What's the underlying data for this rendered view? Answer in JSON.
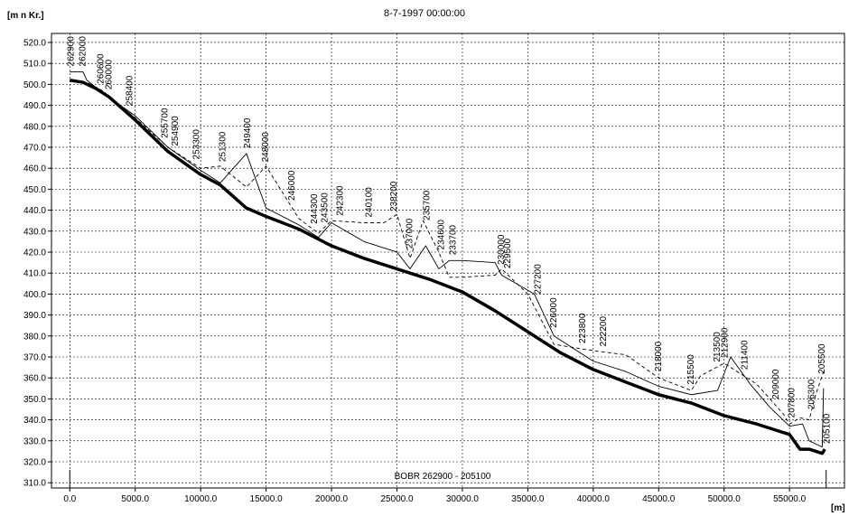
{
  "chart_data": {
    "type": "line",
    "title": "8-7-1997 00:00:00",
    "y_label": "[m n Kr.]",
    "x_label": "[m]",
    "branch_label": "BOBR  262900 - 205100",
    "xlim": [
      -1400,
      59200
    ],
    "ylim": [
      307.5,
      524.3
    ],
    "grid": true,
    "xticks": [
      {
        "value": 0,
        "label": "0.0"
      },
      {
        "value": 5000,
        "label": "5000.0"
      },
      {
        "value": 10000,
        "label": "10000.0"
      },
      {
        "value": 15000,
        "label": "15000.0"
      },
      {
        "value": 20000,
        "label": "20000.0"
      },
      {
        "value": 25000,
        "label": "25000.0"
      },
      {
        "value": 30000,
        "label": "30000.0"
      },
      {
        "value": 35000,
        "label": "35000.0"
      },
      {
        "value": 40000,
        "label": "40000.0"
      },
      {
        "value": 45000,
        "label": "45000.0"
      },
      {
        "value": 50000,
        "label": "50000.0"
      },
      {
        "value": 55000,
        "label": "55000.0"
      }
    ],
    "yticks": [
      {
        "value": 310,
        "label": "310.0"
      },
      {
        "value": 320,
        "label": "320.0"
      },
      {
        "value": 330,
        "label": "330.0"
      },
      {
        "value": 340,
        "label": "340.0"
      },
      {
        "value": 350,
        "label": "350.0"
      },
      {
        "value": 360,
        "label": "360.0"
      },
      {
        "value": 370,
        "label": "370.0"
      },
      {
        "value": 380,
        "label": "380.0"
      },
      {
        "value": 390,
        "label": "390.0"
      },
      {
        "value": 400,
        "label": "400.0"
      },
      {
        "value": 410,
        "label": "410.0"
      },
      {
        "value": 420,
        "label": "420.0"
      },
      {
        "value": 430,
        "label": "430.0"
      },
      {
        "value": 440,
        "label": "440.0"
      },
      {
        "value": 450,
        "label": "450.0"
      },
      {
        "value": 460,
        "label": "460.0"
      },
      {
        "value": 470,
        "label": "470.0"
      },
      {
        "value": 480,
        "label": "480.0"
      },
      {
        "value": 490,
        "label": "490.0"
      },
      {
        "value": 500,
        "label": "500.0"
      },
      {
        "value": 510,
        "label": "510.0"
      },
      {
        "value": 520,
        "label": "520.0"
      }
    ],
    "series": [
      {
        "color": "#000000",
        "style": "thick",
        "x": [
          0,
          1000,
          2000,
          3000,
          5000,
          7500,
          10000,
          11500,
          13500,
          15000,
          17500,
          20000,
          22500,
          25000,
          27500,
          30000,
          32500,
          35000,
          37500,
          40000,
          42500,
          45000,
          47500,
          50000,
          52500,
          55000,
          55800,
          56500,
          57500,
          57700
        ],
        "values": [
          502,
          501,
          498,
          494,
          483,
          468,
          457,
          452,
          441,
          437,
          431,
          423,
          417,
          412,
          407,
          401,
          392,
          382,
          372,
          364,
          358,
          352,
          348,
          342,
          338,
          333,
          326,
          326,
          324,
          326
        ]
      },
      {
        "color": "#000000",
        "style": "solid",
        "x": [
          0,
          1000,
          1300,
          2500,
          5000,
          7500,
          10000,
          11500,
          13500,
          15000,
          17500,
          19000,
          20000,
          22500,
          25000,
          26000,
          27200,
          28200,
          29000,
          30000,
          32500,
          33000,
          35500,
          37000,
          40000,
          42500,
          45000,
          47500,
          49500,
          50500,
          52000,
          53500,
          55000,
          56000,
          56500,
          57500,
          57600
        ],
        "values": [
          506,
          506,
          502,
          496,
          485,
          470,
          459,
          453,
          467,
          441,
          433,
          427,
          434,
          425,
          420,
          412,
          423,
          412,
          416,
          416,
          415,
          409,
          400,
          380,
          368,
          363,
          356,
          352,
          354,
          370,
          357,
          346,
          337,
          338,
          330,
          327,
          355
        ]
      },
      {
        "color": "#000000",
        "style": "dashed",
        "x": [
          0,
          1300,
          2500,
          5000,
          7500,
          10000,
          11500,
          13500,
          15000,
          17500,
          19000,
          20000,
          22500,
          24000,
          25000,
          26000,
          27000,
          28200,
          29000,
          30000,
          32500,
          33000,
          35000,
          37000,
          40000,
          42500,
          45000,
          47500,
          48200,
          50000,
          52500,
          54500,
          55000,
          55800,
          56500,
          57000,
          57600
        ],
        "values": [
          502,
          501,
          497,
          484,
          470,
          460,
          461,
          451,
          461,
          436,
          429,
          435,
          434,
          434,
          438,
          417,
          435,
          420,
          408,
          408,
          409,
          412,
          400,
          376,
          373,
          371,
          360,
          354,
          361,
          367,
          357,
          343,
          338,
          341,
          340,
          352,
          363
        ]
      }
    ],
    "cross_sections": [
      {
        "label": "262900",
        "x": 0
      },
      {
        "label": "262000",
        "x": 900
      },
      {
        "label": "260600",
        "x": 2300
      },
      {
        "label": "260000",
        "x": 2900
      },
      {
        "label": "258400",
        "x": 4500
      },
      {
        "label": "255700",
        "x": 7200
      },
      {
        "label": "254900",
        "x": 8000
      },
      {
        "label": "253300",
        "x": 9600
      },
      {
        "label": "251300",
        "x": 11600
      },
      {
        "label": "249400",
        "x": 13500
      },
      {
        "label": "248000",
        "x": 14900
      },
      {
        "label": "246000",
        "x": 16900
      },
      {
        "label": "244300",
        "x": 18600
      },
      {
        "label": "243500",
        "x": 19400
      },
      {
        "label": "242300",
        "x": 20600
      },
      {
        "label": "240100",
        "x": 22800
      },
      {
        "label": "238200",
        "x": 24700
      },
      {
        "label": "237000",
        "x": 25900
      },
      {
        "label": "235700",
        "x": 27200
      },
      {
        "label": "234600",
        "x": 28300
      },
      {
        "label": "233700",
        "x": 29200
      },
      {
        "label": "230000",
        "x": 32900
      },
      {
        "label": "229500",
        "x": 33400
      },
      {
        "label": "227200",
        "x": 35700
      },
      {
        "label": "226000",
        "x": 36900
      },
      {
        "label": "223800",
        "x": 39100
      },
      {
        "label": "222200",
        "x": 40700
      },
      {
        "label": "218000",
        "x": 44900
      },
      {
        "label": "215500",
        "x": 47400
      },
      {
        "label": "213500",
        "x": 49400
      },
      {
        "label": "212900",
        "x": 50000
      },
      {
        "label": "211400",
        "x": 51500
      },
      {
        "label": "209000",
        "x": 53900
      },
      {
        "label": "207800",
        "x": 55100
      },
      {
        "label": "206300",
        "x": 56600
      },
      {
        "label": "205500",
        "x": 57400
      },
      {
        "label": "205100",
        "x": 57800
      }
    ]
  }
}
